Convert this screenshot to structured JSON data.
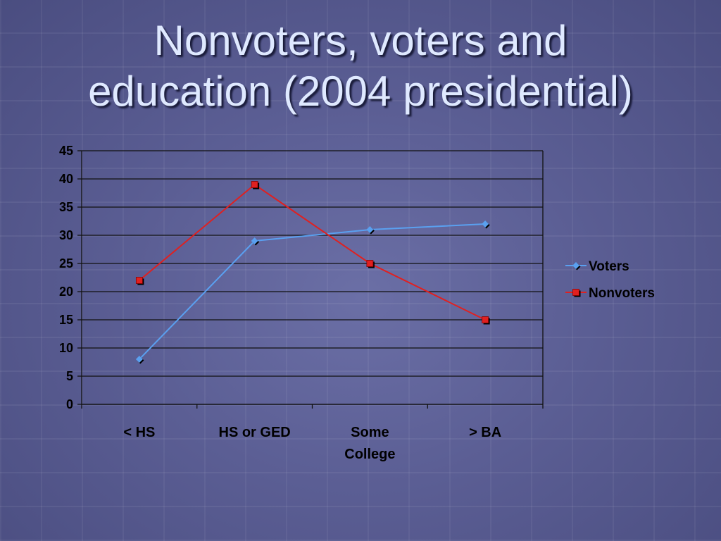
{
  "slide": {
    "title_line1": "Nonvoters, voters and",
    "title_line2": "education (2004 presidential)"
  },
  "colors": {
    "voters": "#5aa0f0",
    "nonvoters": "#e02020",
    "gridline": "#111111",
    "text": "#000000"
  },
  "chart_data": {
    "type": "line",
    "categories": [
      [
        "< HS"
      ],
      [
        "HS or GED"
      ],
      [
        "Some",
        "College"
      ],
      [
        "> BA"
      ]
    ],
    "series": [
      {
        "name": "Voters",
        "values": [
          8,
          29,
          31,
          32
        ],
        "marker": "diamond"
      },
      {
        "name": "Nonvoters",
        "values": [
          22,
          39,
          25,
          15
        ],
        "marker": "square"
      }
    ],
    "ylim": [
      0,
      45
    ],
    "yticks": [
      0,
      5,
      10,
      15,
      20,
      25,
      30,
      35,
      40,
      45
    ],
    "grid": true,
    "legend": "right"
  }
}
